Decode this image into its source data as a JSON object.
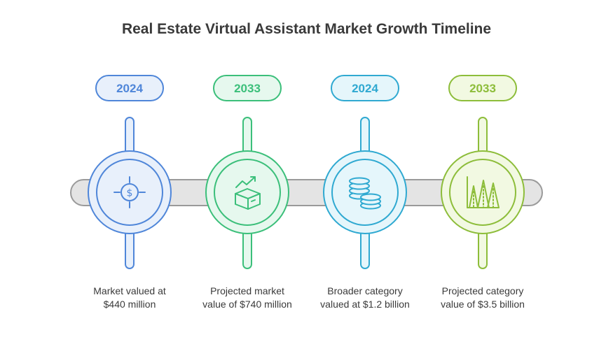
{
  "title": "Real Estate Virtual Assistant Market Growth Timeline",
  "milestones": [
    {
      "year": "2024",
      "caption_line1": "Market valued at",
      "caption_line2": "$440 million",
      "icon": "dollar-target-icon",
      "color": "#4f86d9",
      "fill": "#e8f0fb"
    },
    {
      "year": "2033",
      "caption_line1": "Projected market",
      "caption_line2": "value of $740 million",
      "icon": "growth-box-icon",
      "color": "#3bbf7a",
      "fill": "#e6f8ee"
    },
    {
      "year": "2024",
      "caption_line1": "Broader category",
      "caption_line2": "valued at $1.2 billion",
      "icon": "coin-stacks-icon",
      "color": "#2fa9d1",
      "fill": "#e5f6fb"
    },
    {
      "year": "2033",
      "caption_line1": "Projected category",
      "caption_line2": "value of $3.5 billion",
      "icon": "area-chart-icon",
      "color": "#8dbd3a",
      "fill": "#f2f9e2"
    }
  ]
}
